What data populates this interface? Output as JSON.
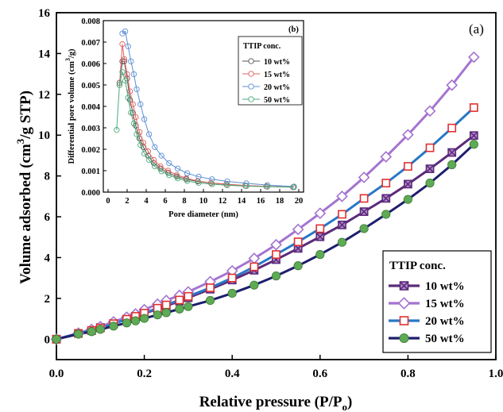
{
  "chart_data": [
    {
      "type": "line",
      "panel_label": "(a)",
      "xlabel": "Relative pressure (P/P",
      "xlabel_sub": "o",
      "xlabel_close": ")",
      "ylabel": "Volume adsorbed (cm",
      "ylabel_sup": "3",
      "ylabel_close": "/g STP)",
      "xlim": [
        0,
        1.0
      ],
      "ylim": [
        -1,
        16
      ],
      "xticks": [
        "0.0",
        "0.2",
        "0.4",
        "0.6",
        "0.8",
        "1.0"
      ],
      "yticks": [
        "0",
        "2",
        "4",
        "6",
        "8",
        "10",
        "12",
        "14",
        "16"
      ],
      "grid": false,
      "legend_title": "TTIP conc.",
      "legend_position": "lower-right",
      "x": [
        0.0,
        0.05,
        0.08,
        0.1,
        0.13,
        0.16,
        0.18,
        0.2,
        0.23,
        0.25,
        0.28,
        0.3,
        0.35,
        0.4,
        0.45,
        0.5,
        0.55,
        0.6,
        0.65,
        0.7,
        0.75,
        0.8,
        0.85,
        0.9,
        0.95
      ],
      "series": [
        {
          "name": "10 wt%",
          "color": "#5b2a7a",
          "fill": "#b78fcb",
          "marker": "x-square",
          "values": [
            0.0,
            0.28,
            0.42,
            0.57,
            0.77,
            0.97,
            1.1,
            1.26,
            1.48,
            1.63,
            1.86,
            2.03,
            2.45,
            2.9,
            3.38,
            3.9,
            4.45,
            5.02,
            5.6,
            6.25,
            6.9,
            7.6,
            8.35,
            9.15,
            9.98
          ]
        },
        {
          "name": "15 wt%",
          "color": "#a474cf",
          "fill": "#ffffff",
          "marker": "diamond",
          "values": [
            0.0,
            0.3,
            0.48,
            0.62,
            0.85,
            1.08,
            1.24,
            1.45,
            1.72,
            1.9,
            2.15,
            2.32,
            2.82,
            3.35,
            3.96,
            4.63,
            5.38,
            6.17,
            7.0,
            7.93,
            8.94,
            10.02,
            11.18,
            12.45,
            13.82
          ]
        },
        {
          "name": "20 wt%",
          "color": "#2878c8",
          "fill": "#ffffff",
          "marker": "square",
          "edgecolor": "#e03030",
          "values": [
            0.0,
            0.28,
            0.43,
            0.55,
            0.76,
            0.98,
            1.12,
            1.28,
            1.52,
            1.68,
            1.92,
            2.1,
            2.52,
            3.0,
            3.55,
            4.15,
            4.77,
            5.42,
            6.12,
            6.9,
            7.65,
            8.47,
            9.38,
            10.35,
            11.35
          ]
        },
        {
          "name": "50 wt%",
          "color": "#1e1e6e",
          "fill": "#5faa55",
          "marker": "circle",
          "values": [
            0.0,
            0.25,
            0.37,
            0.48,
            0.64,
            0.8,
            0.9,
            1.02,
            1.19,
            1.3,
            1.48,
            1.6,
            1.9,
            2.25,
            2.65,
            3.1,
            3.6,
            4.15,
            4.75,
            5.42,
            6.12,
            6.85,
            7.65,
            8.55,
            9.55
          ]
        }
      ]
    },
    {
      "type": "line",
      "panel_label": "(b)",
      "xlabel": "Pore diameter (nm)",
      "ylabel": "Differential pore volume (cm",
      "ylabel_sup": "3",
      "ylabel_close": "/g)",
      "xlim": [
        -0.5,
        20.5
      ],
      "ylim": [
        0,
        0.008
      ],
      "xticks": [
        "0",
        "2",
        "4",
        "6",
        "8",
        "10",
        "12",
        "14",
        "16",
        "18",
        "20"
      ],
      "yticks": [
        "0.000",
        "0.001",
        "0.002",
        "0.003",
        "0.004",
        "0.005",
        "0.006",
        "0.007",
        "0.008"
      ],
      "grid": false,
      "legend_title": "TTIP conc.",
      "legend_position": "top-right",
      "series": [
        {
          "name": "10 wt%",
          "color": "#555555",
          "x": [
            1.2,
            1.5,
            1.7,
            2.0,
            2.3,
            2.6,
            2.9,
            3.3,
            3.7,
            4.2,
            4.8,
            5.5,
            6.3,
            7.2,
            8.2,
            9.4,
            10.8,
            12.4,
            14.4,
            16.6,
            19.4
          ],
          "y": [
            0.0051,
            0.0061,
            0.0061,
            0.0053,
            0.0043,
            0.0037,
            0.0031,
            0.0025,
            0.0021,
            0.0017,
            0.00135,
            0.0011,
            0.0009,
            0.00073,
            0.0006,
            0.0005,
            0.00042,
            0.00036,
            0.0003,
            0.00027,
            0.00023
          ]
        },
        {
          "name": "15 wt%",
          "color": "#e06060",
          "x": [
            1.2,
            1.5,
            1.7,
            2.0,
            2.3,
            2.6,
            2.9,
            3.3,
            3.7,
            4.2,
            4.8,
            5.5,
            6.3,
            7.2,
            8.2,
            9.4,
            10.8,
            12.4,
            14.4,
            16.6,
            19.4
          ],
          "y": [
            0.005,
            0.0069,
            0.0062,
            0.0055,
            0.0047,
            0.0041,
            0.0035,
            0.0028,
            0.0023,
            0.0019,
            0.0015,
            0.0012,
            0.001,
            0.0008,
            0.00065,
            0.00052,
            0.00043,
            0.00037,
            0.00031,
            0.00027,
            0.00023
          ]
        },
        {
          "name": "20 wt%",
          "color": "#5b8fd6",
          "x": [
            1.5,
            1.8,
            2.1,
            2.4,
            2.7,
            3.0,
            3.4,
            3.8,
            4.3,
            4.9,
            5.6,
            6.4,
            7.3,
            8.3,
            9.5,
            10.9,
            12.5,
            14.5,
            16.7,
            19.5
          ],
          "y": [
            0.0074,
            0.0075,
            0.0068,
            0.0061,
            0.0055,
            0.0048,
            0.0041,
            0.0034,
            0.0027,
            0.0021,
            0.0017,
            0.00135,
            0.0011,
            0.00088,
            0.00072,
            0.0006,
            0.0005,
            0.00041,
            0.00033,
            0.00026
          ]
        },
        {
          "name": "50 wt%",
          "color": "#4aaa7a",
          "x": [
            0.9,
            1.2,
            1.5,
            1.8,
            2.1,
            2.4,
            2.7,
            3.0,
            3.4,
            3.8,
            4.3,
            4.9,
            5.6,
            6.4,
            7.3,
            8.3,
            9.5,
            10.9,
            12.5,
            14.5,
            16.7,
            19.5
          ],
          "y": [
            0.0029,
            0.005,
            0.0056,
            0.0052,
            0.0044,
            0.0037,
            0.0032,
            0.0027,
            0.0022,
            0.0018,
            0.0015,
            0.0012,
            0.00097,
            0.00079,
            0.00064,
            0.00052,
            0.00043,
            0.00037,
            0.00032,
            0.00028,
            0.00025,
            0.00023
          ]
        }
      ]
    }
  ]
}
